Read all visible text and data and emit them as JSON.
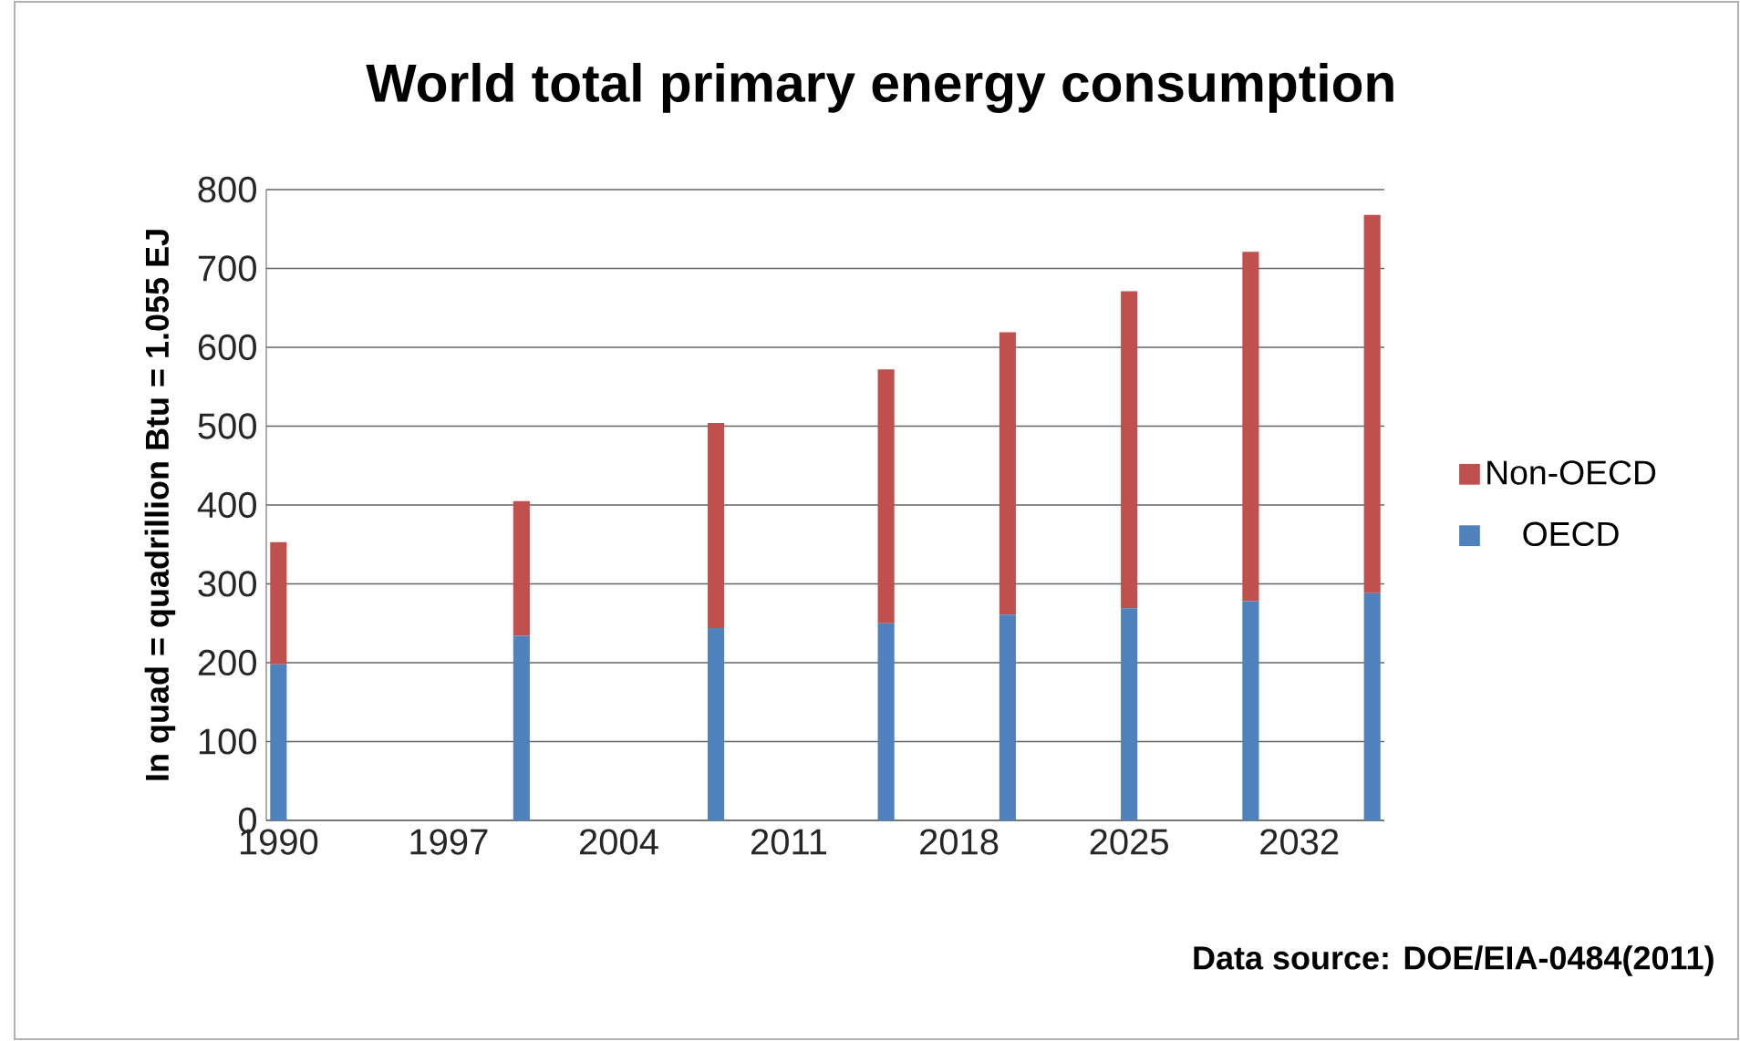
{
  "chart_data": {
    "type": "bar",
    "title": "World total primary energy consumption",
    "ylabel": "In quad = quadrillion Btu = 1.055 EJ",
    "annotations": [
      "Data source: DOE/EIA-0484(2011)"
    ],
    "x": [
      1990,
      2000,
      2008,
      2015,
      2020,
      2025,
      2030,
      2035
    ],
    "stacked": true,
    "series": [
      {
        "name": "OECD",
        "color": "#4f81bd",
        "values": [
          198,
          234,
          244,
          250,
          261,
          269,
          278,
          288
        ]
      },
      {
        "name": "Non-OECD",
        "color": "#c0504d",
        "values": [
          155,
          171,
          260,
          322,
          358,
          402,
          443,
          480
        ]
      }
    ],
    "xlim": [
      1989.5,
      2035.5
    ],
    "xticks": [
      1990,
      1997,
      2004,
      2011,
      2018,
      2025,
      2032
    ],
    "ylim": [
      0,
      800
    ],
    "yticks": [
      0,
      100,
      200,
      300,
      400,
      500,
      600,
      700,
      800
    ],
    "grid": "y",
    "legend": "right"
  }
}
